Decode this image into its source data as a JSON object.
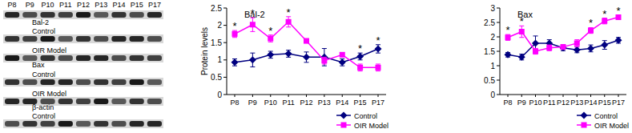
{
  "blot": {
    "lanes": [
      "P8",
      "P9",
      "P10",
      "P11",
      "P12",
      "P13",
      "P14",
      "P15",
      "P17"
    ],
    "labels": [
      "Bal-2",
      "Control",
      "OIR Model",
      "Bax",
      "Control",
      "OIR Model",
      "β-actin",
      "Control"
    ]
  },
  "chart_data": [
    {
      "type": "line",
      "title": "Bal-2",
      "y_label": "Protein levels",
      "categories": [
        "P8",
        "P9",
        "P10",
        "P11",
        "P12",
        "P13",
        "P14",
        "P15",
        "P17"
      ],
      "series": [
        {
          "name": "Control",
          "color": "#000080",
          "marker": "diamond",
          "values": [
            0.93,
            1.0,
            1.15,
            1.18,
            1.08,
            1.08,
            0.93,
            1.1,
            1.32
          ],
          "errors": [
            0.1,
            0.2,
            0.1,
            0.1,
            0.15,
            0.25,
            0.1,
            0.1,
            0.12
          ]
        },
        {
          "name": "OIR Model",
          "color": "#ff00ff",
          "marker": "square",
          "values": [
            1.75,
            2.02,
            1.62,
            2.1,
            1.55,
            0.98,
            1.15,
            0.78,
            0.78
          ],
          "errors": [
            0.1,
            0.2,
            0.1,
            0.15,
            0.06,
            0.1,
            0.06,
            0.1,
            0.1
          ]
        }
      ],
      "annotations": [
        {
          "x": "P8",
          "text": "*"
        },
        {
          "x": "P9",
          "text": "*"
        },
        {
          "x": "P10",
          "text": "*"
        },
        {
          "x": "P11",
          "text": "*"
        },
        {
          "x": "P15",
          "text": "*"
        },
        {
          "x": "P17",
          "text": "*"
        }
      ],
      "ylim": [
        0,
        2.5
      ],
      "yticks": [
        0,
        0.5,
        1,
        1.5,
        2,
        2.5
      ],
      "grid": false,
      "legend": "bottom-right"
    },
    {
      "type": "line",
      "title": "Bax",
      "categories": [
        "P8",
        "P9",
        "P10",
        "P11",
        "P12",
        "P13",
        "P14",
        "P15",
        "P17"
      ],
      "series": [
        {
          "name": "Control",
          "color": "#000080",
          "marker": "diamond",
          "values": [
            1.38,
            1.3,
            1.78,
            1.78,
            1.62,
            1.55,
            1.6,
            1.72,
            1.88
          ],
          "errors": [
            0.08,
            0.1,
            0.25,
            0.12,
            0.1,
            0.1,
            0.12,
            0.15,
            0.1
          ]
        },
        {
          "name": "OIR Model",
          "color": "#ff00ff",
          "marker": "square",
          "values": [
            1.98,
            2.18,
            1.5,
            1.62,
            1.65,
            1.78,
            2.22,
            2.55,
            2.68
          ],
          "errors": [
            0.1,
            0.2,
            0.1,
            0.1,
            0.08,
            0.12,
            0.1,
            0.1,
            0.08
          ]
        }
      ],
      "annotations": [
        {
          "x": "P8",
          "text": "*"
        },
        {
          "x": "P9",
          "text": "*"
        },
        {
          "x": "P14",
          "text": "*"
        },
        {
          "x": "P15",
          "text": "*"
        },
        {
          "x": "P17",
          "text": "*"
        }
      ],
      "ylim": [
        0,
        3
      ],
      "yticks": [
        0,
        0.5,
        1,
        1.5,
        2,
        2.5,
        3
      ],
      "grid": false,
      "legend": "bottom-right"
    }
  ]
}
